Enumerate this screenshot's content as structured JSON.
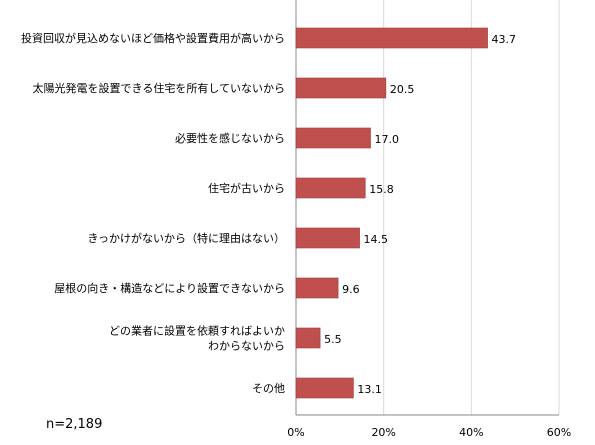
{
  "chart_data": {
    "type": "bar",
    "orientation": "horizontal",
    "categories": [
      [
        "投資回収が見込めないほど価格や設置費用が高いから"
      ],
      [
        "太陽光発電を設置できる住宅を所有していないから"
      ],
      [
        "必要性を感じないから"
      ],
      [
        "住宅が古いから"
      ],
      [
        "きっかけがないから（特に理由はない）"
      ],
      [
        "屋根の向き・構造などにより設置できないから"
      ],
      [
        "どの業者に設置を依頼すればよいか",
        "わからないから"
      ],
      [
        "その他"
      ]
    ],
    "values": [
      43.7,
      20.5,
      17.0,
      15.8,
      14.5,
      9.6,
      5.5,
      13.1
    ],
    "value_labels": [
      "43.7",
      "20.5",
      "17.0",
      "15.8",
      "14.5",
      "9.6",
      "5.5",
      "13.1"
    ],
    "xlim": [
      0,
      60
    ],
    "ticks": [
      0,
      20,
      40,
      60
    ],
    "tick_labels": [
      "0%",
      "20%",
      "40%",
      "60%"
    ],
    "grid": true,
    "note": "n=2,189",
    "colors": {
      "bar": "#c0504d",
      "bar_edge": "#9b3b38",
      "grid": "#d9d9d9",
      "axis": "#888888"
    }
  }
}
